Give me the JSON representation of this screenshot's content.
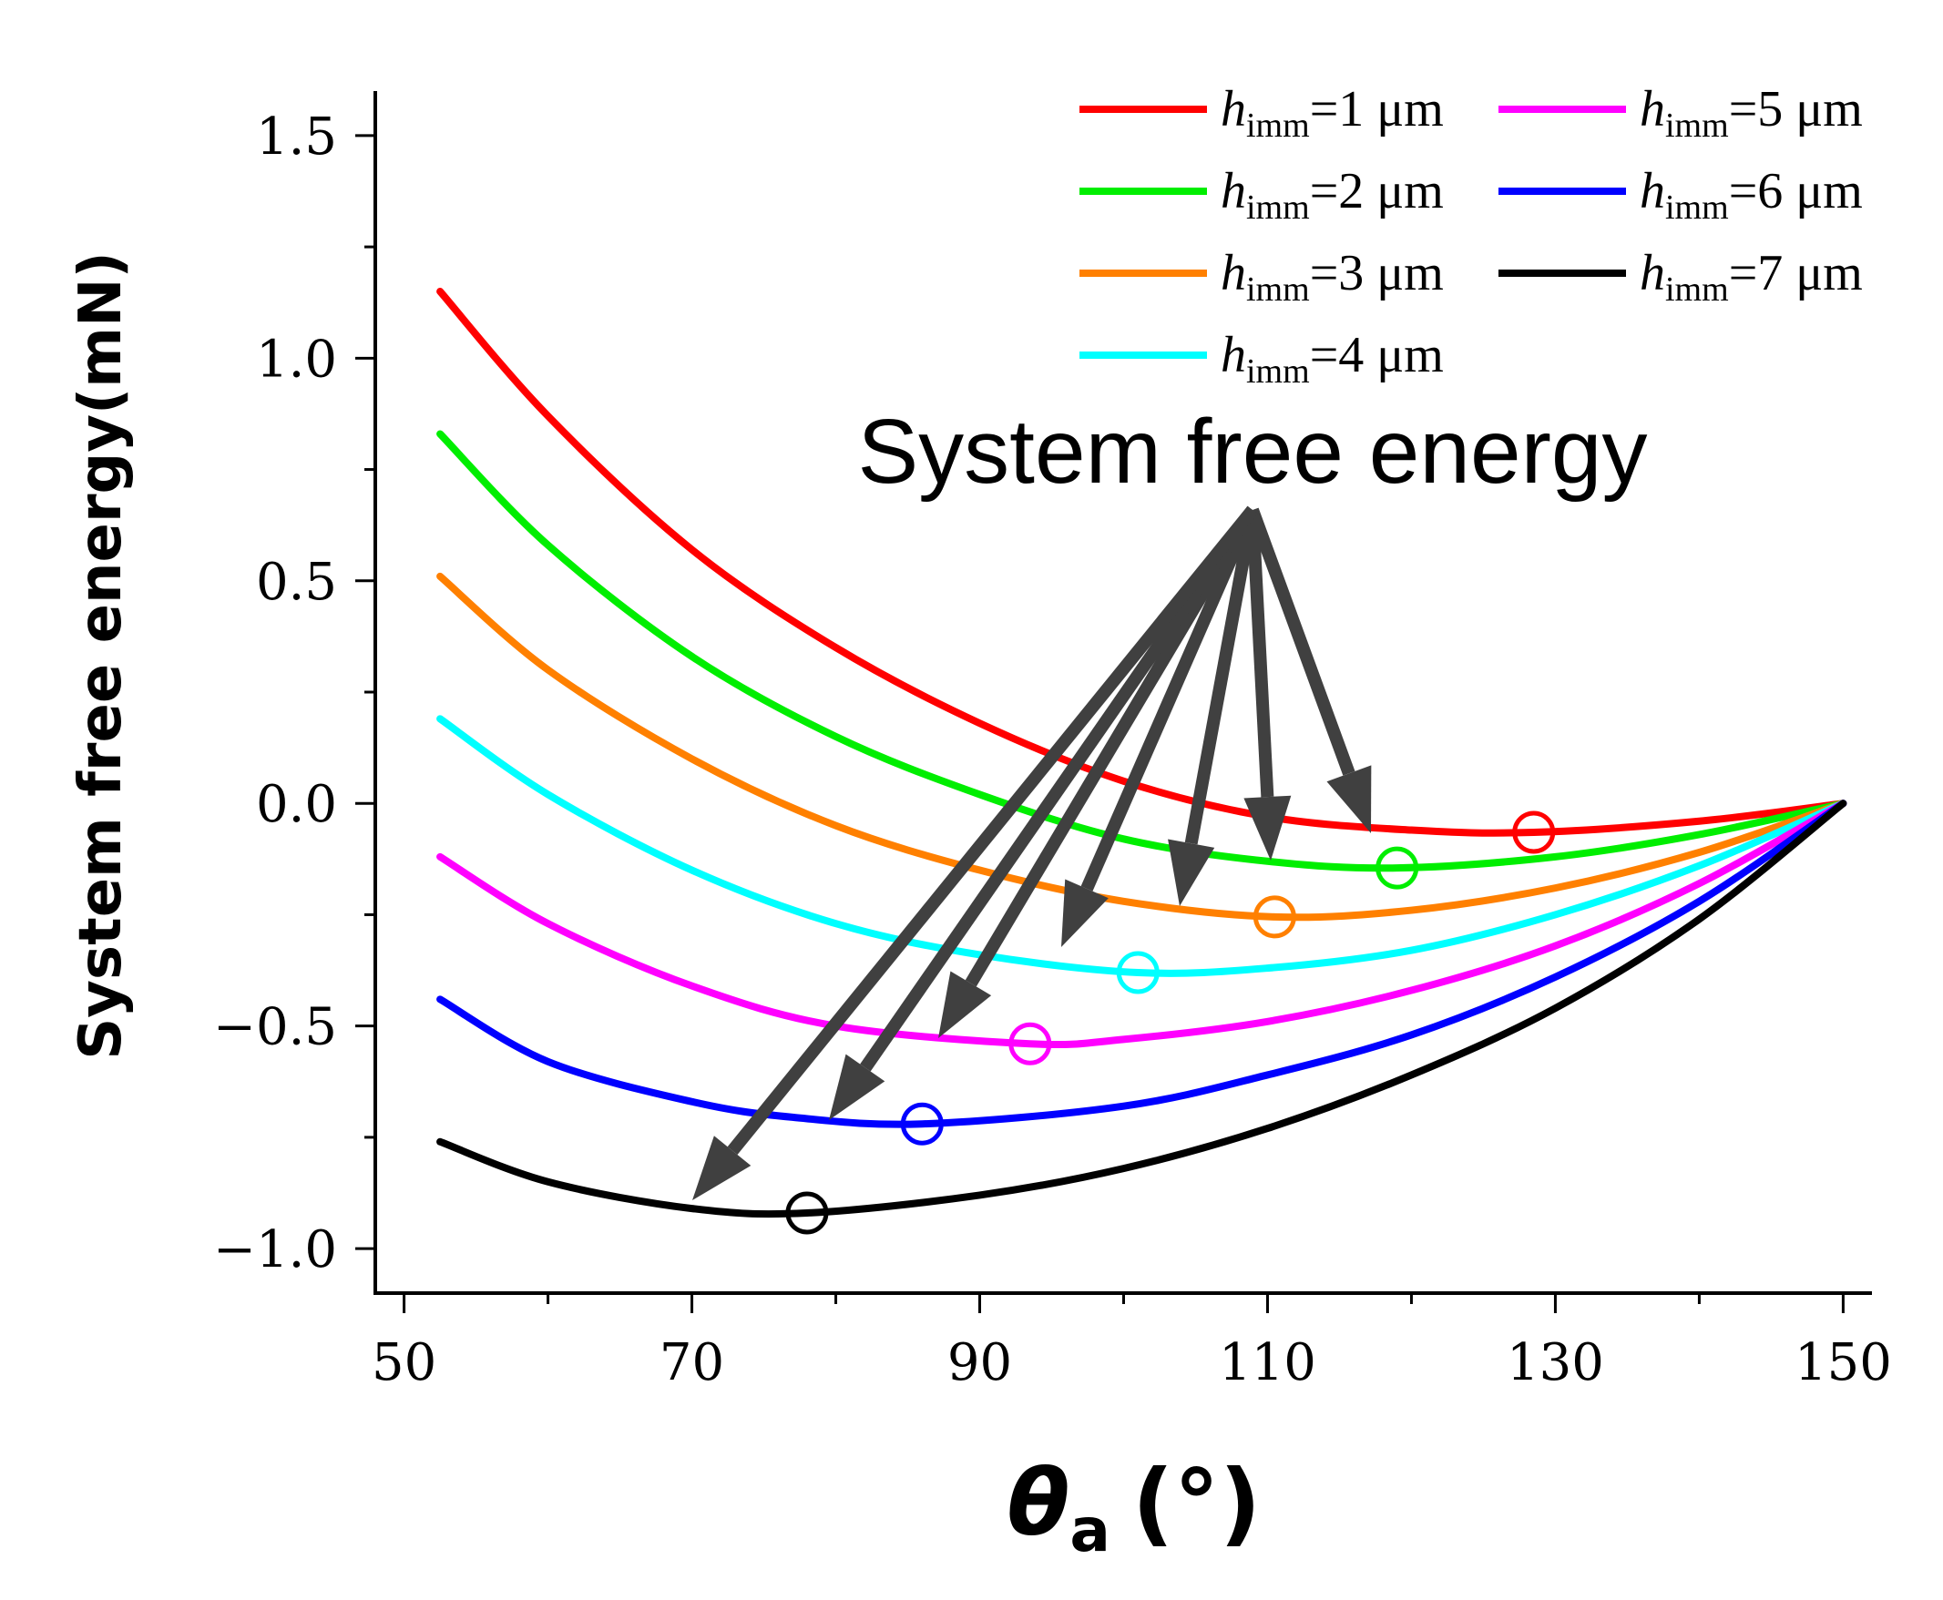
{
  "chart_data": {
    "type": "line",
    "xlabel": "θa (°)",
    "xlabel_main": "θ",
    "xlabel_sub": "a",
    "xlabel_unit": "(°)",
    "ylabel": "System free energy(mN)",
    "xlim": [
      48,
      152
    ],
    "ylim": [
      -1.1,
      1.6
    ],
    "xticks": [
      50,
      70,
      90,
      110,
      130,
      150
    ],
    "xticks_minor": [
      60,
      80,
      100,
      120,
      140
    ],
    "yticks": [
      -1.0,
      -0.5,
      0.0,
      0.5,
      1.0,
      1.5
    ],
    "yticks_minor": [
      -0.75,
      -0.25,
      0.25,
      0.75,
      1.25
    ],
    "ytick_labels": [
      "−1.0",
      "−0.5",
      "0.0",
      "0.5",
      "1.0",
      "1.5"
    ],
    "xtick_labels": [
      "50",
      "70",
      "90",
      "110",
      "130",
      "150"
    ],
    "annotation": "System free energy",
    "legend_position": "top-right",
    "series": [
      {
        "name": "himm=1 μm",
        "h": "1",
        "color": "#ff0000",
        "x": [
          52.5,
          60,
          70,
          80,
          90,
          100,
          110,
          120,
          128.5,
          140,
          150
        ],
        "values": [
          1.15,
          0.87,
          0.57,
          0.35,
          0.18,
          0.05,
          -0.03,
          -0.06,
          -0.065,
          -0.04,
          0.0
        ],
        "min": [
          128.5,
          -0.065
        ]
      },
      {
        "name": "himm=2 μm",
        "h": "2",
        "color": "#00ee00",
        "x": [
          52.5,
          60,
          70,
          80,
          90,
          100,
          110,
          119,
          130,
          140,
          150
        ],
        "values": [
          0.83,
          0.58,
          0.33,
          0.15,
          0.02,
          -0.08,
          -0.13,
          -0.145,
          -0.12,
          -0.07,
          0.0
        ],
        "min": [
          119,
          -0.145
        ]
      },
      {
        "name": "himm=3 μm",
        "h": "3",
        "color": "#ff8000",
        "x": [
          52.5,
          60,
          70,
          80,
          90,
          100,
          110.5,
          120,
          130,
          140,
          150
        ],
        "values": [
          0.51,
          0.3,
          0.1,
          -0.05,
          -0.15,
          -0.22,
          -0.255,
          -0.24,
          -0.19,
          -0.11,
          0.0
        ],
        "min": [
          110.5,
          -0.255
        ]
      },
      {
        "name": "himm=4 μm",
        "h": "4",
        "color": "#00ffff",
        "x": [
          52.5,
          60,
          70,
          80,
          90,
          101,
          110,
          120,
          130,
          140,
          150
        ],
        "values": [
          0.19,
          0.02,
          -0.15,
          -0.27,
          -0.34,
          -0.38,
          -0.37,
          -0.33,
          -0.25,
          -0.14,
          0.0
        ],
        "min": [
          101,
          -0.38
        ]
      },
      {
        "name": "himm=5 μm",
        "h": "5",
        "color": "#ff00ff",
        "x": [
          52.5,
          60,
          70,
          80,
          93.5,
          100,
          110,
          120,
          130,
          140,
          150
        ],
        "values": [
          -0.12,
          -0.27,
          -0.41,
          -0.5,
          -0.54,
          -0.53,
          -0.49,
          -0.42,
          -0.32,
          -0.18,
          0.0
        ],
        "min": [
          93.5,
          -0.54
        ]
      },
      {
        "name": "himm=6 μm",
        "h": "6",
        "color": "#0000ff",
        "x": [
          52.5,
          60,
          70,
          77,
          86,
          100,
          110,
          120,
          130,
          140,
          150
        ],
        "values": [
          -0.44,
          -0.58,
          -0.67,
          -0.705,
          -0.72,
          -0.68,
          -0.61,
          -0.52,
          -0.39,
          -0.22,
          0.0
        ],
        "min": [
          86,
          -0.72
        ]
      },
      {
        "name": "himm=7 μm",
        "h": "7",
        "color": "#000000",
        "x": [
          52.5,
          60,
          70,
          78,
          90,
          100,
          110,
          120,
          130,
          140,
          150
        ],
        "values": [
          -0.76,
          -0.85,
          -0.91,
          -0.92,
          -0.88,
          -0.82,
          -0.73,
          -0.61,
          -0.46,
          -0.26,
          0.0
        ],
        "min": [
          78,
          -0.92
        ]
      }
    ]
  }
}
